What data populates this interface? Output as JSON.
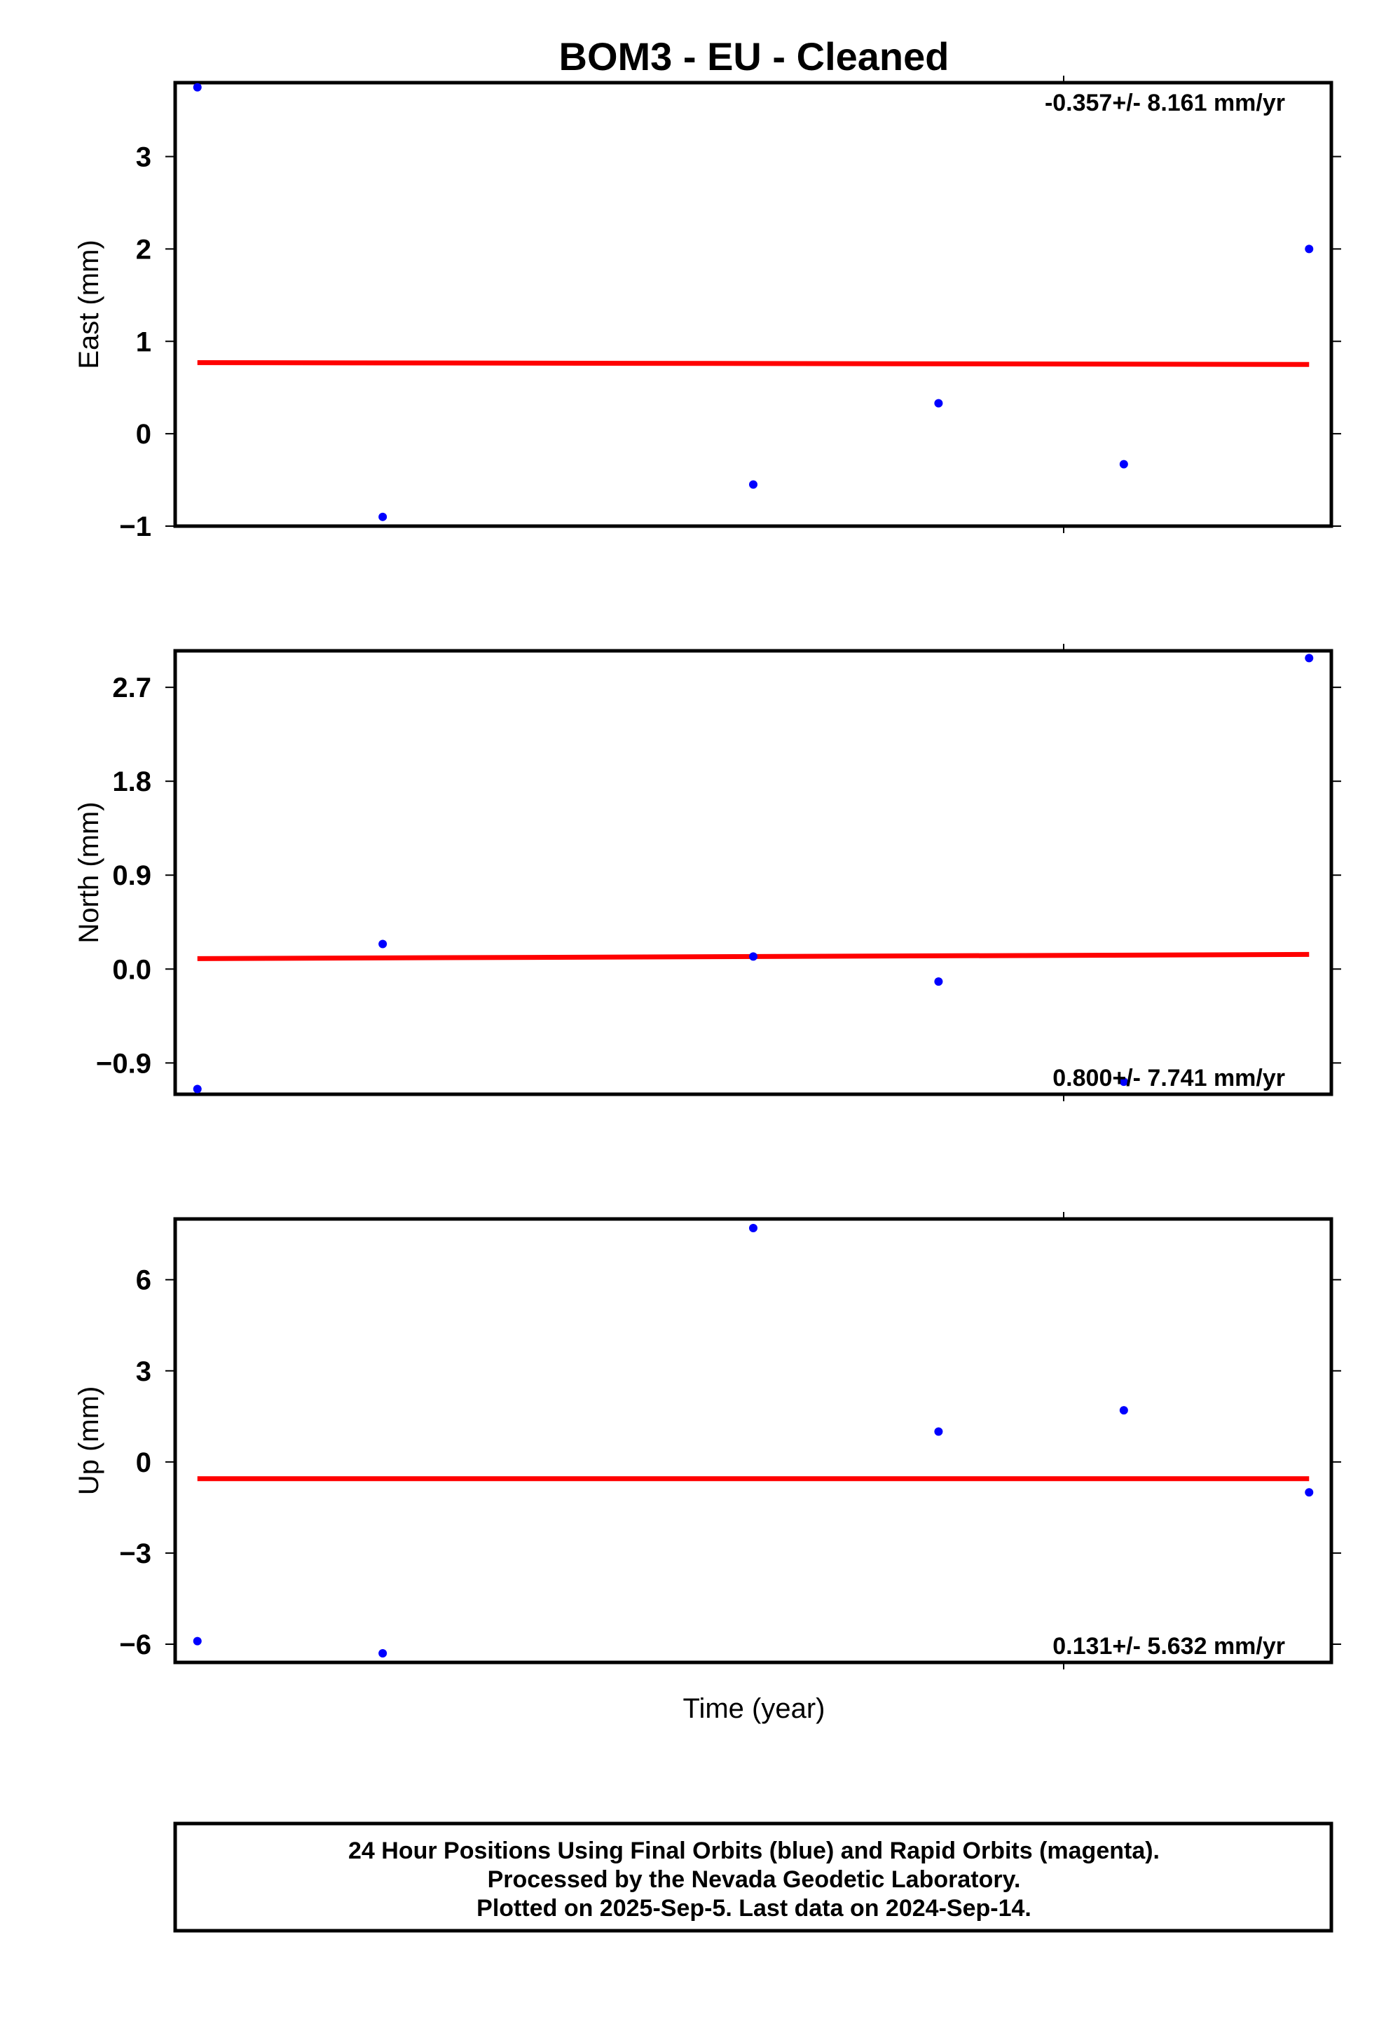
{
  "title": "BOM3  - EU - Cleaned",
  "x_axis_label": "Time (year)",
  "footer": {
    "line1": "24 Hour Positions Using Final Orbits (blue) and Rapid Orbits (magenta).",
    "line2": "Processed by the Nevada Geodetic Laboratory.",
    "line3": "Plotted on 2025-Sep-5. Last data on 2024-Sep-14."
  },
  "colors": {
    "points": "#0000ff",
    "trend": "#ff0000",
    "frame": "#000000"
  },
  "chart_data": [
    {
      "type": "scatter",
      "ylabel": "East (mm)",
      "rate_text": "-0.357+/- 8.161 mm/yr",
      "rate_position": "top-right",
      "ylim": [
        -1,
        3.8
      ],
      "yticks": [
        -1,
        0,
        1,
        2,
        3
      ],
      "ytick_labels": [
        "−1",
        "0",
        "1",
        "2",
        "3"
      ],
      "x_index": [
        0,
        1,
        3,
        4,
        5,
        6
      ],
      "values": [
        3.75,
        -0.9,
        -0.55,
        0.33,
        -0.33,
        2.0
      ],
      "trend": [
        0.77,
        0.75
      ]
    },
    {
      "type": "scatter",
      "ylabel": "North (mm)",
      "rate_text": "0.800+/- 7.741 mm/yr",
      "rate_position": "bottom-right",
      "ylim": [
        -1.2,
        3.05
      ],
      "yticks": [
        -0.9,
        0.0,
        0.9,
        1.8,
        2.7
      ],
      "ytick_labels": [
        "−0.9",
        "0.0",
        "0.9",
        "1.8",
        "2.7"
      ],
      "x_index": [
        0,
        1,
        3,
        4,
        5,
        6
      ],
      "values": [
        -1.15,
        0.24,
        0.12,
        -0.12,
        -1.08,
        2.98
      ],
      "trend": [
        0.1,
        0.14
      ]
    },
    {
      "type": "scatter",
      "ylabel": "Up (mm)",
      "rate_text": "0.131+/- 5.632 mm/yr",
      "rate_position": "bottom-right",
      "ylim": [
        -6.6,
        8.0
      ],
      "yticks": [
        -6,
        -3,
        0,
        3,
        6
      ],
      "ytick_labels": [
        "−6",
        "−3",
        "0",
        "3",
        "6"
      ],
      "x_index": [
        0,
        1,
        3,
        4,
        5,
        6
      ],
      "values": [
        -5.9,
        -6.3,
        7.7,
        1.0,
        1.7,
        -1.0
      ],
      "trend": [
        -0.55,
        -0.55
      ]
    }
  ]
}
